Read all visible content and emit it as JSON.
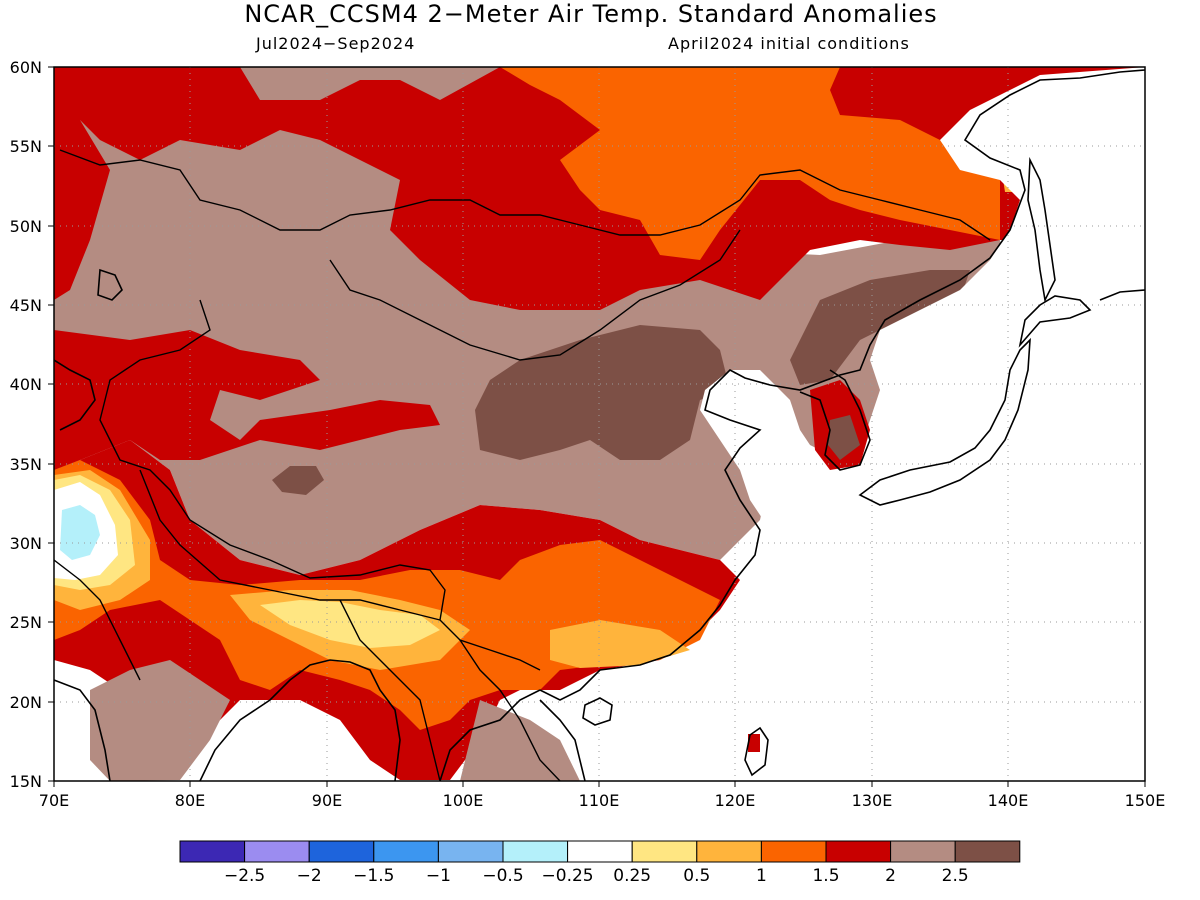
{
  "title": "NCAR_CCSM4 2−Meter Air Temp. Standard Anomalies",
  "subtitle_left": "Jul2024−Sep2024",
  "subtitle_right": "April2024 initial conditions",
  "map": {
    "lon_range": [
      70,
      150
    ],
    "lat_range": [
      15,
      60
    ],
    "x_ticks": [
      {
        "value": 70,
        "label": "70E"
      },
      {
        "value": 80,
        "label": "80E"
      },
      {
        "value": 90,
        "label": "90E"
      },
      {
        "value": 100,
        "label": "100E"
      },
      {
        "value": 110,
        "label": "110E"
      },
      {
        "value": 120,
        "label": "120E"
      },
      {
        "value": 130,
        "label": "130E"
      },
      {
        "value": 140,
        "label": "140E"
      },
      {
        "value": 150,
        "label": "150E"
      }
    ],
    "y_ticks": [
      {
        "value": 60,
        "label": "60N"
      },
      {
        "value": 55,
        "label": "55N"
      },
      {
        "value": 50,
        "label": "50N"
      },
      {
        "value": 45,
        "label": "45N"
      },
      {
        "value": 40,
        "label": "40N"
      },
      {
        "value": 35,
        "label": "35N"
      },
      {
        "value": 30,
        "label": "30N"
      },
      {
        "value": 25,
        "label": "25N"
      },
      {
        "value": 20,
        "label": "20N"
      },
      {
        "value": 15,
        "label": "15N"
      }
    ],
    "gridlines": "dotted"
  },
  "colorbar": {
    "colors": [
      "#3c28b4",
      "#9b8cf0",
      "#1e64dc",
      "#3c96f0",
      "#78b4f0",
      "#b4f0fa",
      "#ffffff",
      "#ffe682",
      "#ffb43c",
      "#fa6400",
      "#c80000",
      "#b48c82",
      "#7d5046"
    ],
    "labels": [
      "−2.5",
      "−2",
      "−1.5",
      "−1",
      "−0.5",
      "−0.25",
      "0.25",
      "0.5",
      "1",
      "1.5",
      "2",
      "2.5"
    ]
  }
}
